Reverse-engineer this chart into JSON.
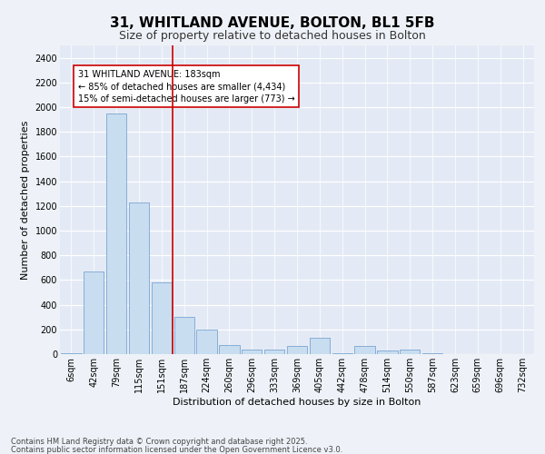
{
  "title": "31, WHITLAND AVENUE, BOLTON, BL1 5FB",
  "subtitle": "Size of property relative to detached houses in Bolton",
  "xlabel": "Distribution of detached houses by size in Bolton",
  "ylabel": "Number of detached properties",
  "categories": [
    "6sqm",
    "42sqm",
    "79sqm",
    "115sqm",
    "151sqm",
    "187sqm",
    "224sqm",
    "260sqm",
    "296sqm",
    "333sqm",
    "369sqm",
    "405sqm",
    "442sqm",
    "478sqm",
    "514sqm",
    "550sqm",
    "587sqm",
    "623sqm",
    "659sqm",
    "696sqm",
    "732sqm"
  ],
  "values": [
    10,
    670,
    1950,
    1230,
    580,
    300,
    200,
    70,
    40,
    40,
    65,
    130,
    5,
    65,
    30,
    35,
    5,
    3,
    2,
    2,
    1
  ],
  "bar_color": "#c9ddf0",
  "bar_edge_color": "#6699cc",
  "highlight_index": 5,
  "highlight_color": "#cc0000",
  "ylim": [
    0,
    2500
  ],
  "yticks": [
    0,
    200,
    400,
    600,
    800,
    1000,
    1200,
    1400,
    1600,
    1800,
    2000,
    2200,
    2400
  ],
  "annotation_title": "31 WHITLAND AVENUE: 183sqm",
  "annotation_line1": "← 85% of detached houses are smaller (4,434)",
  "annotation_line2": "15% of semi-detached houses are larger (773) →",
  "annotation_box_color": "#cc0000",
  "footer1": "Contains HM Land Registry data © Crown copyright and database right 2025.",
  "footer2": "Contains public sector information licensed under the Open Government Licence v3.0.",
  "background_color": "#eef2f8",
  "plot_bg_color": "#e4eaf5",
  "title_fontsize": 11,
  "subtitle_fontsize": 9,
  "xlabel_fontsize": 8,
  "ylabel_fontsize": 8,
  "tick_fontsize": 7,
  "annotation_fontsize": 7,
  "footer_fontsize": 6
}
